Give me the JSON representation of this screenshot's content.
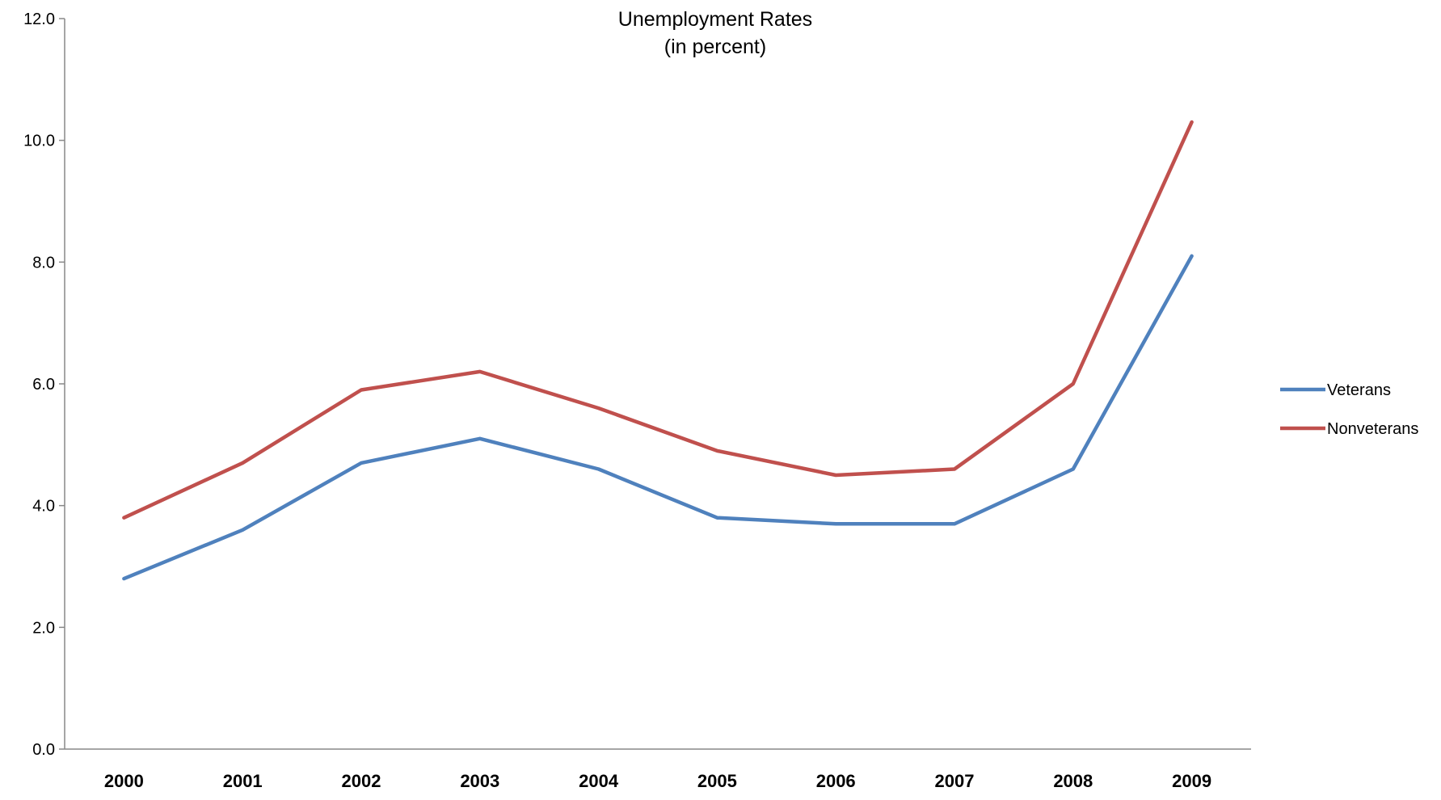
{
  "chart_data": {
    "type": "line",
    "title": "Unemployment Rates",
    "subtitle": "(in percent)",
    "xlabel": "",
    "ylabel": "",
    "x": [
      "2000",
      "2001",
      "2002",
      "2003",
      "2004",
      "2005",
      "2006",
      "2007",
      "2008",
      "2009"
    ],
    "ylim": [
      0,
      12
    ],
    "yticks": [
      "0.0",
      "2.0",
      "4.0",
      "6.0",
      "8.0",
      "10.0",
      "12.0"
    ],
    "grid": false,
    "legend_position": "right",
    "series": [
      {
        "name": "Veterans",
        "color": "#4F81BD",
        "values": [
          2.8,
          3.6,
          4.7,
          5.1,
          4.6,
          3.8,
          3.7,
          3.7,
          4.6,
          8.1
        ]
      },
      {
        "name": "Nonveterans",
        "color": "#C0504D",
        "values": [
          3.8,
          4.7,
          5.9,
          6.2,
          5.6,
          4.9,
          4.5,
          4.6,
          6.0,
          10.3
        ]
      }
    ]
  }
}
